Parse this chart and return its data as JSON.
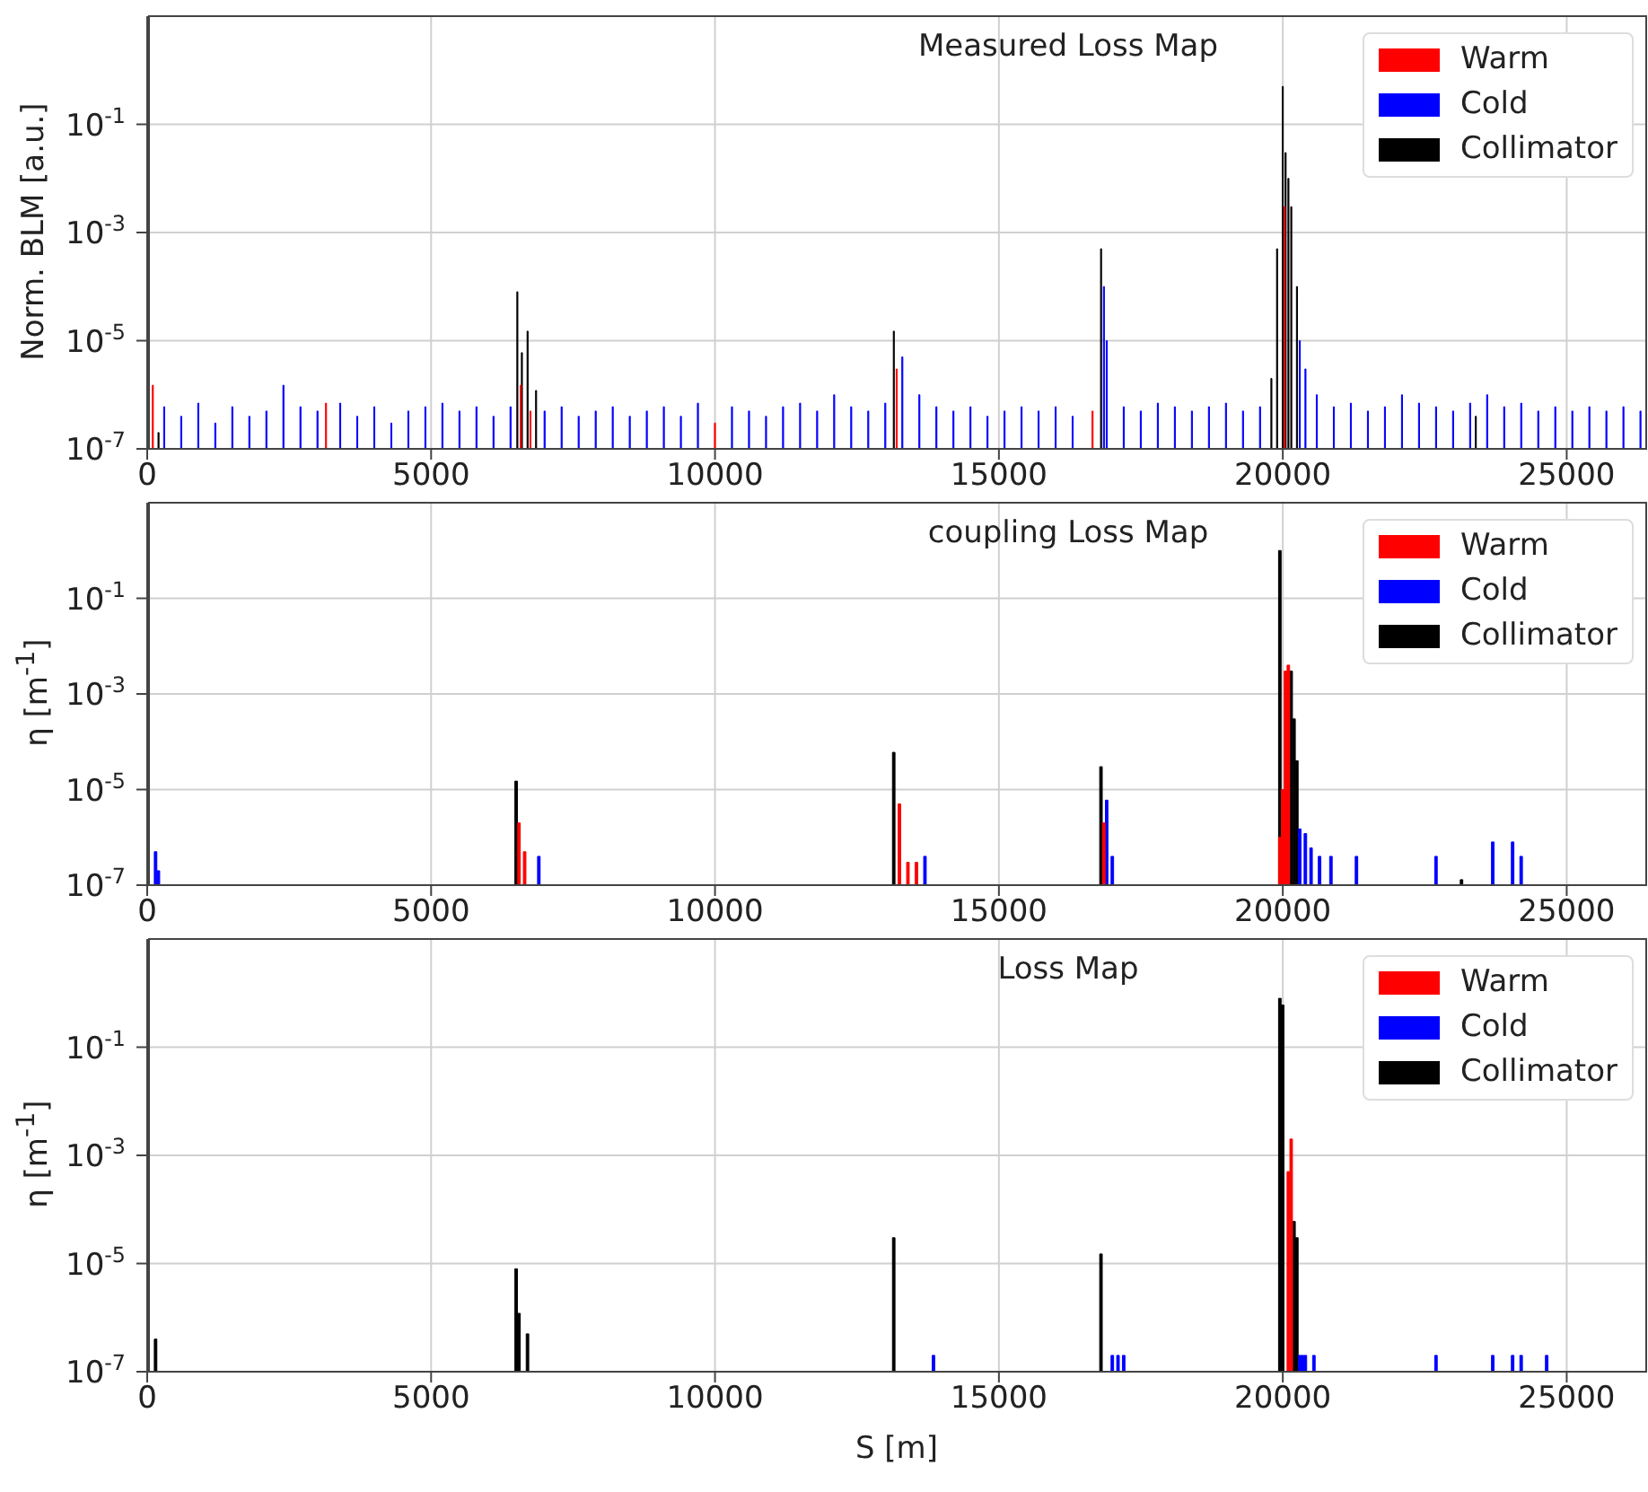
{
  "chart_data": [
    {
      "type": "bar",
      "title": "Measured Loss Map",
      "ylabel": "Norm. BLM [a.u.]",
      "log": "y",
      "grid": true,
      "legend": "top right",
      "xlim": [
        0,
        26400
      ],
      "xticks": [
        0,
        5000,
        10000,
        15000,
        20000,
        25000
      ],
      "ylim": [
        1e-07,
        10
      ],
      "yticks": [
        {
          "value": 1e-07,
          "label": "10$^{-7}$"
        },
        {
          "value": 1e-05,
          "label": "10$^{-5}$"
        },
        {
          "value": 0.001,
          "label": "10$^{-3}$"
        },
        {
          "value": 0.1,
          "label": "10$^{-1}$"
        }
      ],
      "series": [
        {
          "name": "Warm",
          "color": "#ff0000",
          "x": [
            100,
            3150,
            6580,
            6750,
            10000,
            13200,
            16650,
            20030
          ],
          "values": [
            1.5e-06,
            7e-07,
            1.5e-06,
            5e-07,
            3e-07,
            3e-06,
            5e-07,
            0.003
          ]
        },
        {
          "name": "Cold",
          "color": "#0000ff",
          "x": [
            300,
            600,
            900,
            1200,
            1500,
            1800,
            2100,
            2400,
            2700,
            3000,
            3400,
            3700,
            4000,
            4300,
            4600,
            4900,
            5200,
            5500,
            5800,
            6100,
            6400,
            7000,
            7300,
            7600,
            7900,
            8200,
            8500,
            8800,
            9100,
            9400,
            9700,
            10300,
            10600,
            10900,
            11200,
            11500,
            11800,
            12100,
            12400,
            12700,
            13000,
            13300,
            13600,
            13900,
            14200,
            14500,
            14800,
            15100,
            15400,
            15700,
            16000,
            16300,
            16850,
            16900,
            17200,
            17500,
            17800,
            18100,
            18400,
            18700,
            19000,
            19300,
            19600,
            20300,
            20400,
            20600,
            20900,
            21200,
            21500,
            21800,
            22100,
            22400,
            22700,
            23000,
            23300,
            23600,
            23900,
            24200,
            24500,
            24800,
            25100,
            25400,
            25700,
            26000,
            26300
          ],
          "values": [
            6e-07,
            4e-07,
            7e-07,
            3e-07,
            6e-07,
            4e-07,
            5e-07,
            1.5e-06,
            6e-07,
            5e-07,
            7e-07,
            4e-07,
            6e-07,
            3e-07,
            5e-07,
            6e-07,
            7e-07,
            5e-07,
            6e-07,
            4e-07,
            6e-07,
            5e-07,
            6e-07,
            4e-07,
            5e-07,
            6e-07,
            4e-07,
            5e-07,
            6e-07,
            4e-07,
            7e-07,
            6e-07,
            5e-07,
            4e-07,
            6e-07,
            7e-07,
            5e-07,
            1e-06,
            6e-07,
            5e-07,
            7e-07,
            5e-06,
            1e-06,
            6e-07,
            5e-07,
            6e-07,
            4e-07,
            5e-07,
            6e-07,
            5e-07,
            6e-07,
            4e-07,
            0.0001,
            1e-05,
            6e-07,
            5e-07,
            7e-07,
            6e-07,
            5e-07,
            6e-07,
            7e-07,
            5e-07,
            6e-07,
            1e-05,
            3e-06,
            1e-06,
            6e-07,
            7e-07,
            5e-07,
            6e-07,
            1e-06,
            7e-07,
            6e-07,
            5e-07,
            7e-07,
            1e-06,
            6e-07,
            7e-07,
            5e-07,
            6e-07,
            5e-07,
            6e-07,
            5e-07,
            6e-07,
            5e-07
          ]
        },
        {
          "name": "Collimator",
          "color": "#000000",
          "x": [
            200,
            6520,
            6600,
            6700,
            6850,
            13150,
            16800,
            19800,
            19900,
            20000,
            20050,
            20100,
            20150,
            20250,
            23400
          ],
          "values": [
            2e-07,
            8e-05,
            6e-06,
            1.5e-05,
            1.2e-06,
            1.5e-05,
            0.0005,
            2e-06,
            0.0005,
            0.5,
            0.03,
            0.01,
            0.003,
            0.0001,
            4e-07
          ]
        }
      ]
    },
    {
      "type": "bar",
      "title": "coupling Loss Map",
      "ylabel": "η [m$^{-1}$]",
      "log": "y",
      "grid": true,
      "legend": "top right",
      "xlim": [
        0,
        26400
      ],
      "xticks": [
        0,
        5000,
        10000,
        15000,
        20000,
        25000
      ],
      "ylim": [
        1e-07,
        10
      ],
      "yticks": [
        {
          "value": 1e-07,
          "label": "10$^{-7}$"
        },
        {
          "value": 1e-05,
          "label": "10$^{-5}$"
        },
        {
          "value": 0.001,
          "label": "10$^{-3}$"
        },
        {
          "value": 0.1,
          "label": "10$^{-1}$"
        }
      ],
      "series": [
        {
          "name": "Warm",
          "color": "#ff0000",
          "x": [
            6550,
            6650,
            13250,
            13400,
            13550,
            16850,
            19950,
            20000,
            20050,
            20100
          ],
          "values": [
            2e-06,
            5e-07,
            5e-06,
            3e-07,
            3e-07,
            2e-06,
            1e-06,
            1e-05,
            0.003,
            0.004
          ]
        },
        {
          "name": "Cold",
          "color": "#0000ff",
          "x": [
            150,
            200,
            6900,
            13700,
            16900,
            17000,
            20300,
            20400,
            20500,
            20650,
            20850,
            21300,
            22700,
            23700,
            24050,
            24200
          ],
          "values": [
            5e-07,
            2e-07,
            4e-07,
            4e-07,
            6e-06,
            4e-07,
            1.5e-06,
            1.2e-06,
            6e-07,
            4e-07,
            4e-07,
            4e-07,
            4e-07,
            8e-07,
            8e-07,
            4e-07
          ]
        },
        {
          "name": "Collimator",
          "color": "#000000",
          "x": [
            6500,
            13150,
            16800,
            19950,
            20150,
            20200,
            20250,
            23150
          ],
          "values": [
            1.5e-05,
            6e-05,
            3e-05,
            1,
            0.003,
            0.0003,
            4e-05,
            1.3e-07
          ]
        }
      ]
    },
    {
      "type": "bar",
      "title": "Loss Map",
      "xlabel": "S [m]",
      "ylabel": "η [m$^{-1}$]",
      "log": "y",
      "grid": true,
      "legend": "top right",
      "xlim": [
        0,
        26400
      ],
      "xticks": [
        0,
        5000,
        10000,
        15000,
        20000,
        25000
      ],
      "ylim": [
        1e-07,
        10
      ],
      "yticks": [
        {
          "value": 1e-07,
          "label": "10$^{-7}$"
        },
        {
          "value": 1e-05,
          "label": "10$^{-5}$"
        },
        {
          "value": 0.001,
          "label": "10$^{-3}$"
        },
        {
          "value": 0.1,
          "label": "10$^{-1}$"
        }
      ],
      "series": [
        {
          "name": "Warm",
          "color": "#ff0000",
          "x": [
            20100,
            20150
          ],
          "values": [
            0.0005,
            0.002
          ]
        },
        {
          "name": "Cold",
          "color": "#0000ff",
          "x": [
            13850,
            17000,
            17100,
            17200,
            20300,
            20350,
            20400,
            20550,
            22700,
            23700,
            24050,
            24200,
            24650
          ],
          "values": [
            2e-07,
            2e-07,
            2e-07,
            2e-07,
            2e-07,
            2e-07,
            2e-07,
            2e-07,
            2e-07,
            2e-07,
            2e-07,
            2e-07,
            2e-07
          ]
        },
        {
          "name": "Collimator",
          "color": "#000000",
          "x": [
            150,
            6500,
            6550,
            6700,
            13150,
            16800,
            19950,
            20000,
            20200,
            20250
          ],
          "values": [
            4e-07,
            8e-06,
            1.2e-06,
            5e-07,
            3e-05,
            1.5e-05,
            0.8,
            0.6,
            6e-05,
            3e-05
          ]
        }
      ]
    }
  ]
}
